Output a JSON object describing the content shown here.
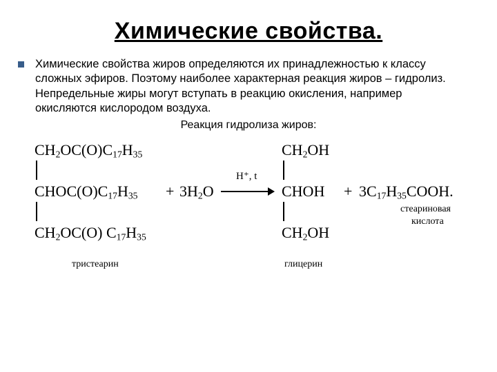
{
  "title": "Химические свойства.",
  "bullet_text": "Химические свойства жиров определяются их принадлежностью к классу сложных эфиров. Поэтому наиболее характерная реакция жиров – гидролиз. Непредельные жиры могут вступать в реакцию окисления, например окисляются кислородом воздуха.",
  "subtitle": "Реакция гидролиза жиров:",
  "bullet_color": "#385d8a",
  "chem": {
    "left": {
      "line1": "CH<sub>2</sub>OC(O)C<sub>17</sub>H<sub>35</sub>",
      "line2": "CHOC(O)C<sub>17</sub>H<sub>35</sub>",
      "line3": "CH<sub>2</sub>OC(O) C<sub>17</sub>H<sub>35</sub>",
      "label": "тристеарин"
    },
    "plus1": "+",
    "water": "3H<sub>2</sub>O",
    "conditions": "H⁺, t",
    "right": {
      "line1": "CH<sub>2</sub>OH",
      "line2": "CHOH",
      "line3": "CH<sub>2</sub>OH",
      "label": "глицерин"
    },
    "plus2": "+",
    "acid": "3C<sub>17</sub>H<sub>35</sub>COOH.",
    "acid_label_l1": "стеариновая",
    "acid_label_l2": "кислота"
  }
}
